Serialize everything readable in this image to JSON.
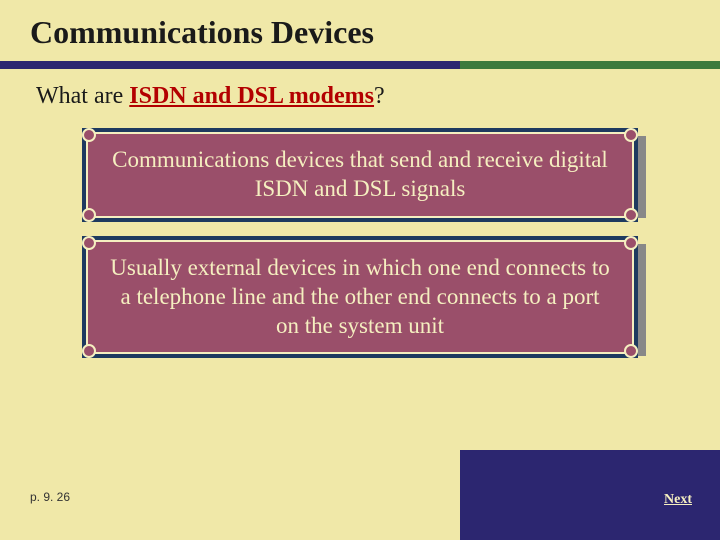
{
  "title": "Communications Devices",
  "subtitle_prefix": "What are ",
  "subtitle_hl": "ISDN and DSL modems",
  "subtitle_suffix": "?",
  "card1_text": "Communications devices that send and receive digital ISDN and DSL signals",
  "card2_text": "Usually external devices in which one end connects to a telephone line and the other end connects to a port on the system unit",
  "page_ref": "p. 9. 26",
  "next_label": "Next",
  "colors": {
    "bg": "#f0e8a8",
    "purple": "#2c2670",
    "green": "#3d7a3d",
    "card_outer": "#1e3a5f",
    "card_inner": "#9a4f6a",
    "card_border": "#f5efc0",
    "card_text": "#f5efc0",
    "hl": "#b30000",
    "arrow": "#d4a538"
  }
}
